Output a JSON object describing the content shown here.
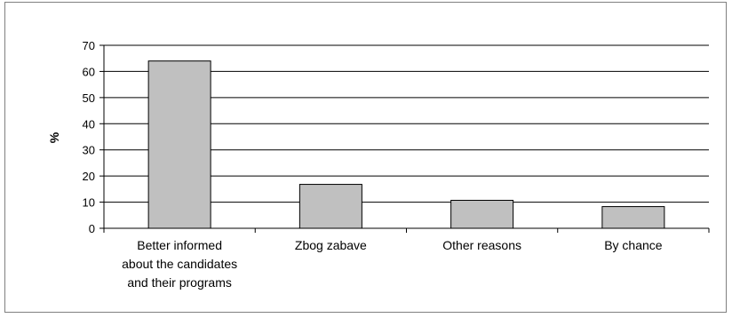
{
  "chart_data": {
    "type": "bar",
    "categories": [
      [
        "Better informed",
        "about the candidates",
        "and their programs"
      ],
      [
        "Zbog zabave"
      ],
      [
        "Other reasons"
      ],
      [
        "By chance"
      ]
    ],
    "values": [
      64,
      16.8,
      10.7,
      8.3
    ],
    "title": "",
    "xlabel": "",
    "ylabel": "%",
    "ylim": [
      0,
      70
    ],
    "yticks": [
      0,
      10,
      20,
      30,
      40,
      50,
      60,
      70
    ],
    "grid": true,
    "legend": "none",
    "colors": {
      "bar_fill": "#c0c0c0",
      "bar_stroke": "#000000",
      "grid": "#000000",
      "axis": "#000000",
      "frame": "#808080"
    }
  }
}
